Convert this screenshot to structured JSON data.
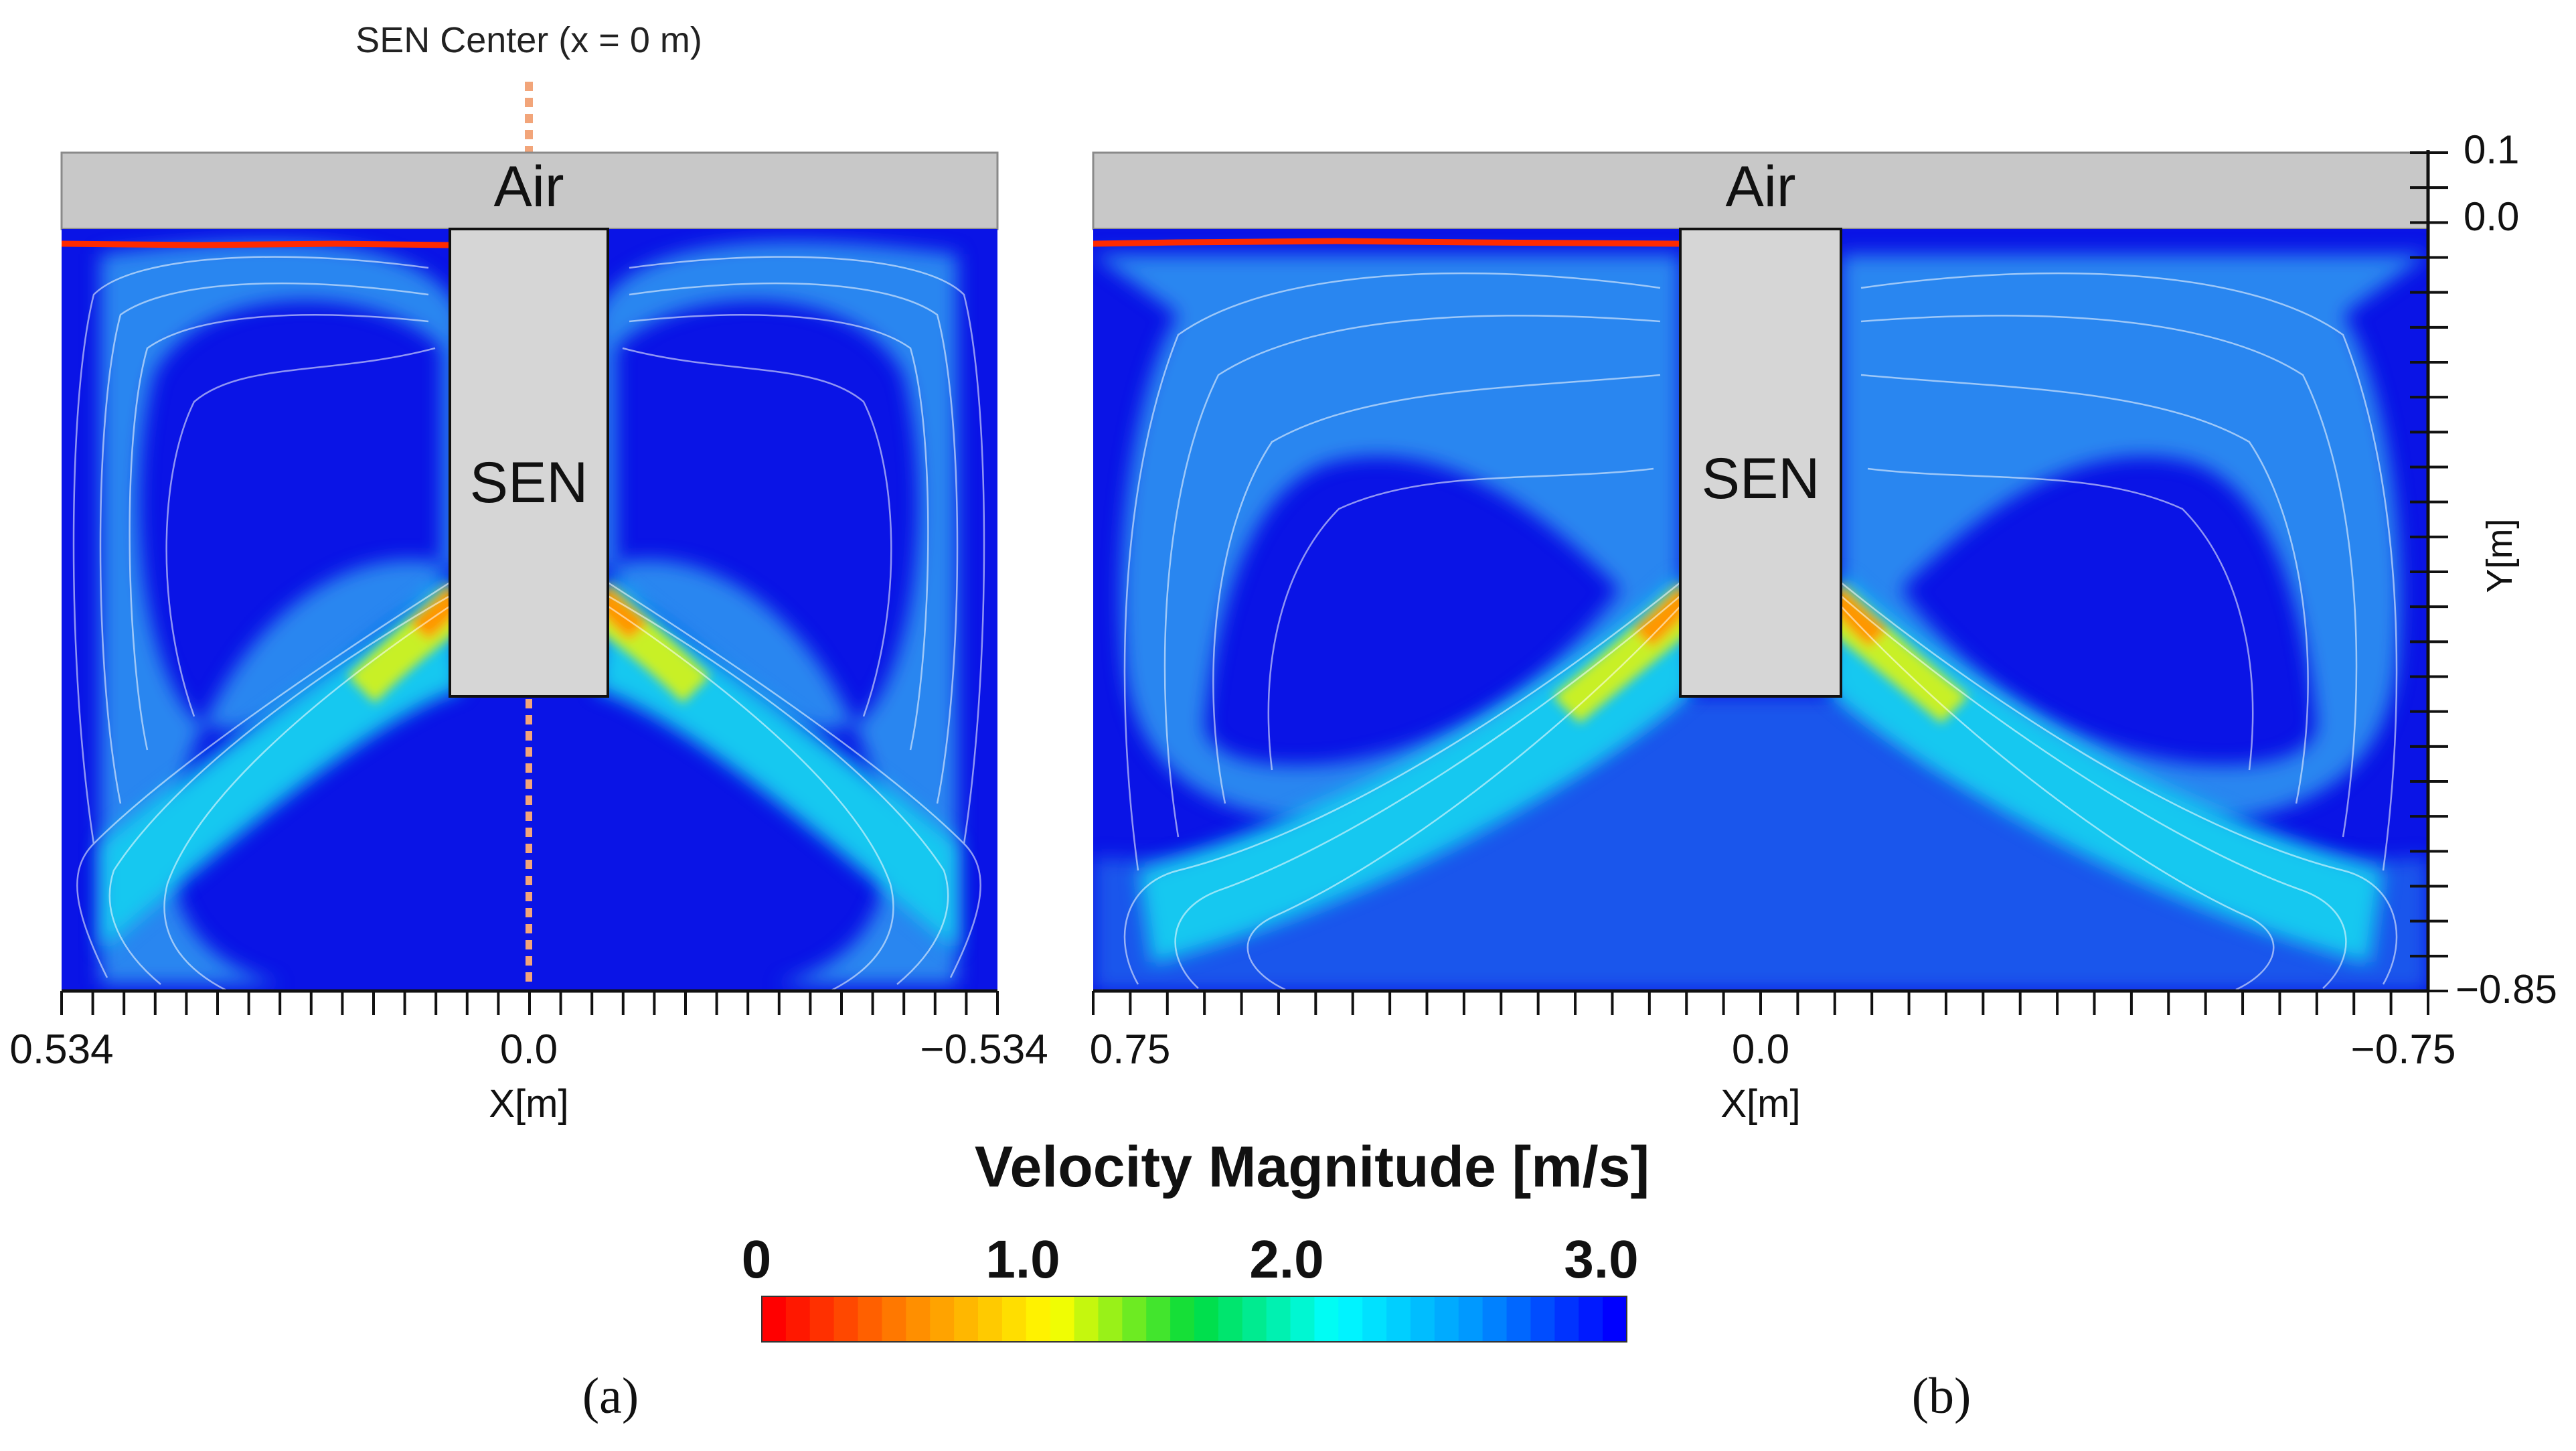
{
  "annotation": {
    "sen_center": "SEN Center (x = 0 m)"
  },
  "panels": [
    {
      "id": "a",
      "caption": "(a)",
      "air_label": "Air",
      "sen_label": "SEN",
      "x_ticks": {
        "left": "0.534",
        "center": "0.0",
        "right": "−0.534"
      },
      "x_axis_label": "X[m]"
    },
    {
      "id": "b",
      "caption": "(b)",
      "air_label": "Air",
      "sen_label": "SEN",
      "x_ticks": {
        "left": "0.75",
        "center": "0.0",
        "right": "−0.75"
      },
      "x_axis_label": "X[m]"
    }
  ],
  "y_axis": {
    "label": "Y[m]",
    "ticks": [
      "0.1",
      "0.0",
      "−0.85"
    ]
  },
  "colorbar": {
    "title": "Velocity Magnitude [m/s]",
    "ticks": [
      "0",
      "1.0",
      "2.0",
      "3.0"
    ],
    "range": [
      0,
      3.0
    ],
    "colors": [
      "#ff0000",
      "#ff8c00",
      "#ffff00",
      "#00dc3c",
      "#00ffff",
      "#0096ff",
      "#0000ff"
    ]
  },
  "palette": {
    "background_flow": "#0a14e6",
    "air": "#c8c8c8",
    "sen_body": "#d6d6d6",
    "free_surface": "#ff2a00",
    "streamline": "#ffffff",
    "centerline": "#f2a57a"
  }
}
